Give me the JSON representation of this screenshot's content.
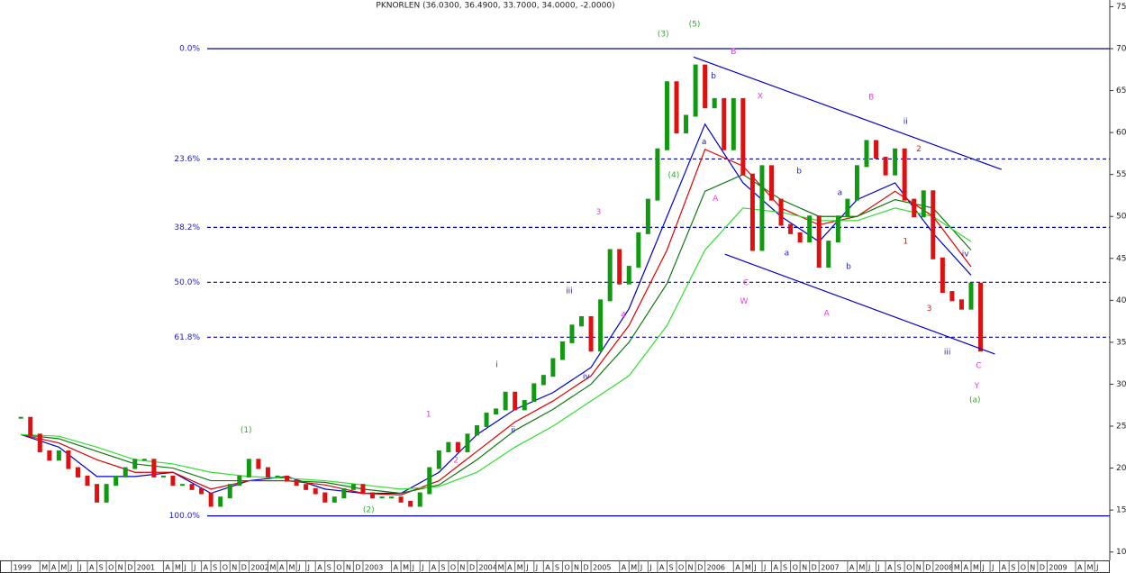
{
  "chart_data": {
    "type": "price",
    "title": "PKNORLEN (36.0300, 36.4900, 33.7000, 34.0000, -2.0000)",
    "xlim": [
      -2.2,
      114.6
    ],
    "ylim": [
      9,
      75.8
    ],
    "yticks": [
      10,
      15,
      20,
      25,
      30,
      35,
      40,
      45,
      50,
      55,
      60,
      65,
      70,
      75
    ],
    "up_color": "#119911",
    "down_color": "#dd1111",
    "xticks": [
      {
        "value": -1,
        "label": "1999"
      },
      {
        "value": 2,
        "label": "M"
      },
      {
        "value": 3,
        "label": "A"
      },
      {
        "value": 4,
        "label": "M"
      },
      {
        "value": 5,
        "label": "J"
      },
      {
        "value": 6,
        "label": "J"
      },
      {
        "value": 7,
        "label": "A"
      },
      {
        "value": 8,
        "label": "S"
      },
      {
        "value": 9,
        "label": "O"
      },
      {
        "value": 10,
        "label": "N"
      },
      {
        "value": 11,
        "label": "D"
      },
      {
        "value": 12,
        "label": "2001"
      },
      {
        "value": 15,
        "label": "A"
      },
      {
        "value": 16,
        "label": "M"
      },
      {
        "value": 17,
        "label": "J"
      },
      {
        "value": 18,
        "label": "J"
      },
      {
        "value": 19,
        "label": "A"
      },
      {
        "value": 20,
        "label": "S"
      },
      {
        "value": 21,
        "label": "O"
      },
      {
        "value": 22,
        "label": "N"
      },
      {
        "value": 23,
        "label": "D"
      },
      {
        "value": 24,
        "label": "2002"
      },
      {
        "value": 26,
        "label": "M"
      },
      {
        "value": 27,
        "label": "A"
      },
      {
        "value": 28,
        "label": "M"
      },
      {
        "value": 29,
        "label": "J"
      },
      {
        "value": 30,
        "label": "J"
      },
      {
        "value": 31,
        "label": "A"
      },
      {
        "value": 32,
        "label": "S"
      },
      {
        "value": 33,
        "label": "O"
      },
      {
        "value": 34,
        "label": "N"
      },
      {
        "value": 35,
        "label": "D"
      },
      {
        "value": 36,
        "label": "2003"
      },
      {
        "value": 39,
        "label": "A"
      },
      {
        "value": 40,
        "label": "M"
      },
      {
        "value": 41,
        "label": "J"
      },
      {
        "value": 42,
        "label": "J"
      },
      {
        "value": 43,
        "label": "A"
      },
      {
        "value": 44,
        "label": "S"
      },
      {
        "value": 45,
        "label": "O"
      },
      {
        "value": 46,
        "label": "N"
      },
      {
        "value": 47,
        "label": "D"
      },
      {
        "value": 48,
        "label": "2004"
      },
      {
        "value": 50,
        "label": "M"
      },
      {
        "value": 51,
        "label": "A"
      },
      {
        "value": 52,
        "label": "M"
      },
      {
        "value": 53,
        "label": "J"
      },
      {
        "value": 54,
        "label": "J"
      },
      {
        "value": 55,
        "label": "A"
      },
      {
        "value": 56,
        "label": "S"
      },
      {
        "value": 57,
        "label": "O"
      },
      {
        "value": 58,
        "label": "N"
      },
      {
        "value": 59,
        "label": "D"
      },
      {
        "value": 60,
        "label": "2005"
      },
      {
        "value": 63,
        "label": "A"
      },
      {
        "value": 64,
        "label": "M"
      },
      {
        "value": 65,
        "label": "J"
      },
      {
        "value": 66,
        "label": "J"
      },
      {
        "value": 67,
        "label": "A"
      },
      {
        "value": 68,
        "label": "S"
      },
      {
        "value": 69,
        "label": "O"
      },
      {
        "value": 70,
        "label": "N"
      },
      {
        "value": 71,
        "label": "D"
      },
      {
        "value": 72,
        "label": "2006"
      },
      {
        "value": 75,
        "label": "A"
      },
      {
        "value": 76,
        "label": "M"
      },
      {
        "value": 77,
        "label": "J"
      },
      {
        "value": 78,
        "label": "J"
      },
      {
        "value": 79,
        "label": "A"
      },
      {
        "value": 80,
        "label": "S"
      },
      {
        "value": 81,
        "label": "O"
      },
      {
        "value": 82,
        "label": "N"
      },
      {
        "value": 83,
        "label": "D"
      },
      {
        "value": 84,
        "label": "2007"
      },
      {
        "value": 87,
        "label": "A"
      },
      {
        "value": 88,
        "label": "M"
      },
      {
        "value": 89,
        "label": "J"
      },
      {
        "value": 90,
        "label": "J"
      },
      {
        "value": 91,
        "label": "A"
      },
      {
        "value": 92,
        "label": "S"
      },
      {
        "value": 93,
        "label": "O"
      },
      {
        "value": 94,
        "label": "N"
      },
      {
        "value": 95,
        "label": "D"
      },
      {
        "value": 96,
        "label": "2008"
      },
      {
        "value": 98,
        "label": "M"
      },
      {
        "value": 99,
        "label": "A"
      },
      {
        "value": 100,
        "label": "M"
      },
      {
        "value": 101,
        "label": "J"
      },
      {
        "value": 102,
        "label": "J"
      },
      {
        "value": 103,
        "label": "A"
      },
      {
        "value": 104,
        "label": "S"
      },
      {
        "value": 105,
        "label": "O"
      },
      {
        "value": 106,
        "label": "N"
      },
      {
        "value": 107,
        "label": "D"
      },
      {
        "value": 108,
        "label": "2009"
      },
      {
        "value": 111,
        "label": "A"
      },
      {
        "value": 112,
        "label": "M"
      },
      {
        "value": 113,
        "label": "J"
      }
    ],
    "price": {
      "x": [
        0,
        1,
        2,
        3,
        4,
        5,
        6,
        7,
        8,
        9,
        10,
        11,
        12,
        13,
        14,
        15,
        16,
        17,
        18,
        19,
        20,
        21,
        22,
        23,
        24,
        25,
        26,
        27,
        28,
        29,
        30,
        31,
        32,
        33,
        34,
        35,
        36,
        37,
        38,
        39,
        40,
        41,
        42,
        43,
        44,
        45,
        46,
        47,
        48,
        49,
        50,
        51,
        52,
        53,
        54,
        55,
        56,
        57,
        58,
        59,
        60,
        61,
        62,
        63,
        64,
        65,
        66,
        67,
        68,
        69,
        70,
        71,
        72,
        73,
        74,
        75,
        76,
        77,
        78,
        79,
        80,
        81,
        82,
        83,
        84,
        85,
        86,
        87,
        88,
        89,
        90,
        91,
        92,
        93,
        94,
        95,
        96,
        97,
        98,
        99,
        100,
        101
      ],
      "values": [
        26,
        24,
        22,
        21,
        22,
        20,
        19,
        18,
        16,
        18,
        19,
        20,
        21,
        21,
        19,
        19,
        18,
        18,
        17.5,
        17,
        15.5,
        16.5,
        18,
        19,
        21,
        20,
        19,
        19,
        18.5,
        18,
        17.5,
        17,
        16,
        16.5,
        17.5,
        18,
        17,
        16.5,
        16.5,
        16.5,
        16,
        15.5,
        17,
        20,
        22,
        23,
        22,
        24,
        25,
        26.5,
        27,
        29,
        27,
        28,
        30,
        31,
        33,
        35,
        37,
        38,
        34,
        40,
        46,
        42,
        44,
        48,
        52,
        58,
        66,
        60,
        62,
        68,
        63,
        64,
        58,
        64,
        55,
        46,
        56,
        52,
        49,
        48,
        47,
        50,
        44,
        47,
        50,
        52,
        56,
        59,
        57,
        55,
        58,
        52,
        50,
        53,
        45,
        41,
        40,
        39,
        42,
        34
      ]
    },
    "series": [
      {
        "color": "#0000cc",
        "x": [
          0,
          4,
          8,
          12,
          16,
          20,
          24,
          28,
          32,
          36,
          40,
          44,
          48,
          52,
          56,
          60,
          64,
          68,
          72,
          76,
          80,
          84,
          88,
          92,
          96,
          100
        ],
        "values": [
          24,
          22.5,
          19,
          19,
          19.5,
          17,
          18.5,
          19,
          17.5,
          17,
          17,
          19.5,
          24,
          27,
          29,
          32,
          39,
          50,
          61,
          54,
          50,
          47,
          52,
          54,
          48,
          43
        ]
      },
      {
        "color": "#dd0000",
        "x": [
          0,
          4,
          8,
          12,
          16,
          20,
          24,
          28,
          32,
          36,
          40,
          44,
          48,
          52,
          56,
          60,
          64,
          68,
          72,
          76,
          80,
          84,
          88,
          92,
          96,
          100
        ],
        "values": [
          24,
          23,
          21,
          19.5,
          19.5,
          17.5,
          18.5,
          18.5,
          18,
          17,
          16.8,
          18.5,
          22,
          25.5,
          28,
          31,
          37,
          46,
          58,
          56,
          51,
          49,
          50,
          53,
          50,
          44
        ]
      },
      {
        "color": "#117711",
        "x": [
          0,
          4,
          8,
          12,
          16,
          20,
          24,
          28,
          32,
          36,
          40,
          44,
          48,
          52,
          56,
          60,
          64,
          68,
          72,
          76,
          80,
          84,
          88,
          92,
          96,
          100
        ],
        "values": [
          24,
          23.5,
          22,
          20.5,
          20,
          18.5,
          18.5,
          18.5,
          18.3,
          17.5,
          17,
          18,
          21,
          24.5,
          27,
          30,
          35,
          42,
          53,
          55,
          52,
          50,
          50,
          52,
          51,
          46
        ]
      },
      {
        "color": "#33dd33",
        "x": [
          0,
          4,
          8,
          12,
          16,
          20,
          24,
          28,
          32,
          36,
          40,
          44,
          48,
          52,
          56,
          60,
          64,
          68,
          72,
          76,
          80,
          84,
          88,
          92,
          96,
          100
        ],
        "values": [
          24,
          23.8,
          22.5,
          21,
          20.5,
          19.5,
          19,
          18.8,
          18.5,
          18,
          17.5,
          17.8,
          19.5,
          22.5,
          25,
          28,
          31,
          37,
          46,
          51,
          50.5,
          49.5,
          49.5,
          51,
          50,
          47
        ]
      }
    ],
    "fib_levels": [
      {
        "label": "0.0%",
        "value": 70,
        "style": "solid"
      },
      {
        "label": "23.6%",
        "value": 56.85,
        "style": "dashed"
      },
      {
        "label": "38.2%",
        "value": 48.7,
        "style": "dashed"
      },
      {
        "label": "50.0%",
        "value": 42.15,
        "style": "dashed"
      },
      {
        "label": "61.8%",
        "value": 35.6,
        "style": "dashed"
      },
      {
        "label": "100.0%",
        "value": 14.3,
        "style": "solid"
      }
    ],
    "trendlines": [
      {
        "x": [
          70.8,
          103.2
        ],
        "y": [
          69,
          55.6
        ]
      },
      {
        "x": [
          74.1,
          102.5
        ],
        "y": [
          45.5,
          33.6
        ]
      }
    ],
    "annotations": [
      {
        "text": "(1)",
        "x": 23.7,
        "y": 24.5,
        "color": "#33aa33"
      },
      {
        "text": "(2)",
        "x": 36.6,
        "y": 15,
        "color": "#33aa33"
      },
      {
        "text": "(3)",
        "x": 67.6,
        "y": 71.7,
        "color": "#33aa33"
      },
      {
        "text": "(5)",
        "x": 70.9,
        "y": 72.9,
        "color": "#33aa33"
      },
      {
        "text": "(4)",
        "x": 68.7,
        "y": 54.9,
        "color": "#33aa33"
      },
      {
        "text": "(a)",
        "x": 100.4,
        "y": 28.1,
        "color": "#33aa33"
      },
      {
        "text": "1",
        "x": 42.9,
        "y": 26.4,
        "color": "#e040e0"
      },
      {
        "text": "2",
        "x": 45.8,
        "y": 20.9,
        "color": "#e040e0"
      },
      {
        "text": "3",
        "x": 60.8,
        "y": 50.5,
        "color": "#e040e0"
      },
      {
        "text": "4",
        "x": 63.4,
        "y": 38.2,
        "color": "#e040e0"
      },
      {
        "text": "B",
        "x": 75,
        "y": 69.6,
        "color": "#e040e0"
      },
      {
        "text": "A",
        "x": 73.1,
        "y": 52.1,
        "color": "#e040e0"
      },
      {
        "text": "X",
        "x": 77.8,
        "y": 64.3,
        "color": "#e040e0"
      },
      {
        "text": "C",
        "x": 76.3,
        "y": 42.1,
        "color": "#e040e0"
      },
      {
        "text": "W",
        "x": 76.1,
        "y": 39.9,
        "color": "#e040e0"
      },
      {
        "text": "A",
        "x": 84.8,
        "y": 38.4,
        "color": "#e040e0"
      },
      {
        "text": "B",
        "x": 89.5,
        "y": 64.2,
        "color": "#e040e0"
      },
      {
        "text": "C",
        "x": 100.8,
        "y": 32.2,
        "color": "#e040e0"
      },
      {
        "text": "Y",
        "x": 100.6,
        "y": 29.8,
        "color": "#e040e0"
      },
      {
        "text": "i",
        "x": 50.1,
        "y": 32.3,
        "color": "#2020c0"
      },
      {
        "text": "ii",
        "x": 51.8,
        "y": 24.5,
        "color": "#2020c0"
      },
      {
        "text": "iii",
        "x": 57.7,
        "y": 41.1,
        "color": "#2020c0"
      },
      {
        "text": "iv",
        "x": 59.5,
        "y": 30.9,
        "color": "#2020c0"
      },
      {
        "text": "b",
        "x": 72.9,
        "y": 66.7,
        "color": "#2020c0"
      },
      {
        "text": "a",
        "x": 71.9,
        "y": 58.9,
        "color": "#2020c0"
      },
      {
        "text": "b",
        "x": 81.9,
        "y": 55.4,
        "color": "#2020c0"
      },
      {
        "text": "a",
        "x": 80.6,
        "y": 45.6,
        "color": "#2020c0"
      },
      {
        "text": "a",
        "x": 86.2,
        "y": 52.8,
        "color": "#2020c0"
      },
      {
        "text": "b",
        "x": 87.1,
        "y": 44,
        "color": "#2020c0"
      },
      {
        "text": "ii",
        "x": 93.1,
        "y": 61.3,
        "color": "#2020c0"
      },
      {
        "text": "iv",
        "x": 99.4,
        "y": 45.5,
        "color": "#2020c0"
      },
      {
        "text": "iii",
        "x": 97.5,
        "y": 33.8,
        "color": "#2020c0"
      },
      {
        "text": "2",
        "x": 94.5,
        "y": 58,
        "color": "#cc2020"
      },
      {
        "text": "1",
        "x": 93.1,
        "y": 47,
        "color": "#cc2020"
      },
      {
        "text": "3",
        "x": 95.6,
        "y": 39,
        "color": "#cc2020"
      },
      {
        "text": "4",
        "x": 97.1,
        "y": 44.3,
        "color": "#cc2020"
      }
    ]
  }
}
